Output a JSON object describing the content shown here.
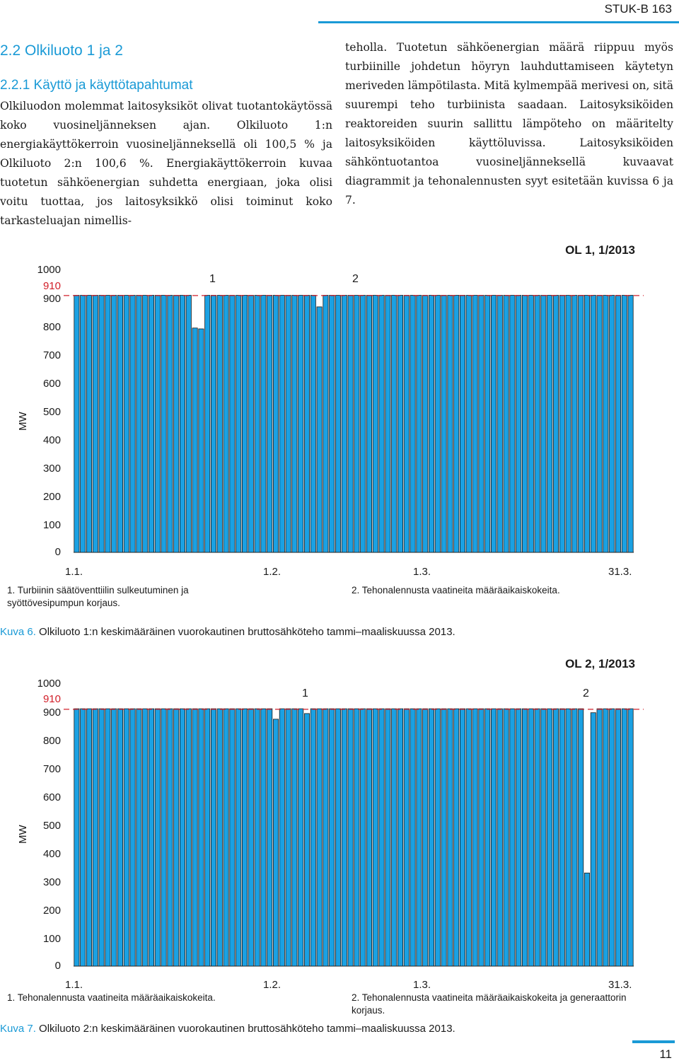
{
  "header": {
    "series": "STUK-B 163"
  },
  "section": {
    "title": "2.2  Olkiluoto 1 ja 2",
    "subtitle": "2.2.1 Käyttö ja käyttötapahtumat"
  },
  "body": {
    "left": "Olkiluodon molemmat laitosyksiköt olivat tuotantokäytössä koko vuosineljänneksen ajan. Olkiluoto 1:n energiakäyttökerroin vuosineljänneksellä oli 100,5 % ja Olkiluoto 2:n 100,6 %. Energiakäyttökerroin kuvaa tuotetun sähköenergian suhdetta energiaan, joka olisi voitu tuottaa, jos laitosyksikkö olisi toiminut koko tarkasteluajan nimellis-",
    "right": "teholla. Tuotetun sähköenergian määrä riippuu myös turbiinille johdetun höyryn lauhduttamiseen käytetyn meriveden lämpötilasta. Mitä kylmempää merivesi on, sitä suurempi teho turbiinista saadaan. Laitosyksiköiden reaktoreiden suurin sallittu lämpöteho on määritelty laitosyksiköiden käyttöluvissa. Laitosyksiköiden sähköntuotantoa vuosineljänneksellä kuvaavat diagrammit ja tehonalennusten syyt esitetään kuvissa 6 ja 7."
  },
  "colors": {
    "bar": "#1aa1e3",
    "accent": "#1a9ad6",
    "reference_line": "#d2202a"
  },
  "chart_data": [
    {
      "type": "bar",
      "title": "OL 1, 1/2013",
      "ylabel": "MW",
      "ylim": [
        0,
        1000
      ],
      "yticks": [
        "1000",
        "900",
        "800",
        "700",
        "600",
        "500",
        "400",
        "300",
        "200",
        "100",
        "0"
      ],
      "reference": {
        "value": 910,
        "label": "910"
      },
      "xticks": [
        "1.1.",
        "1.2.",
        "1.3.",
        "31.3."
      ],
      "annotations": [
        "1",
        "2"
      ],
      "values": [
        911,
        911,
        911,
        911,
        911,
        911,
        911,
        911,
        911,
        911,
        911,
        911,
        911,
        911,
        911,
        911,
        911,
        911,
        911,
        911,
        911,
        911,
        911,
        911,
        911,
        911,
        911,
        911,
        911,
        911,
        911,
        911,
        911,
        911,
        911,
        911,
        911,
        911,
        911,
        911,
        911,
        911,
        911,
        911,
        911,
        911,
        911,
        911,
        911,
        911,
        911,
        911,
        911,
        911,
        911,
        911,
        911,
        911,
        911,
        911,
        911,
        911,
        911,
        911,
        911,
        911,
        911,
        911,
        911,
        911,
        911,
        911,
        911,
        911,
        911,
        911,
        911,
        911,
        911,
        911,
        911,
        911,
        911,
        911,
        911,
        911,
        911,
        911,
        911,
        911
      ],
      "dips": [
        {
          "day": 19,
          "value": 795
        },
        {
          "day": 20,
          "value": 792
        },
        {
          "day": 39,
          "value": 870
        }
      ],
      "notes": [
        "1. Turbiinin säätöventtiilin sulkeutuminen ja syöttövesipumpun korjaus.",
        "2. Tehonalennusta vaatineita määräaikaiskokeita."
      ],
      "caption_label": "Kuva 6.",
      "caption": "Olkiluoto 1:n keskimääräinen vuorokautinen bruttosähköteho tammi–maaliskuussa 2013."
    },
    {
      "type": "bar",
      "title": "OL 2, 1/2013",
      "ylabel": "MW",
      "ylim": [
        0,
        1000
      ],
      "yticks": [
        "1000",
        "900",
        "800",
        "700",
        "600",
        "500",
        "400",
        "300",
        "200",
        "100",
        "0"
      ],
      "reference": {
        "value": 910,
        "label": "910"
      },
      "xticks": [
        "1.1.",
        "1.2.",
        "1.3.",
        "31.3."
      ],
      "annotations": [
        "1",
        "2"
      ],
      "values": [
        912,
        912,
        912,
        912,
        912,
        912,
        912,
        912,
        912,
        912,
        912,
        912,
        912,
        912,
        912,
        912,
        912,
        912,
        912,
        912,
        912,
        912,
        912,
        912,
        912,
        912,
        912,
        912,
        912,
        912,
        912,
        912,
        912,
        912,
        912,
        912,
        912,
        912,
        912,
        912,
        912,
        912,
        912,
        912,
        912,
        912,
        912,
        912,
        912,
        912,
        912,
        912,
        912,
        912,
        912,
        912,
        912,
        912,
        912,
        912,
        912,
        912,
        912,
        912,
        912,
        912,
        912,
        912,
        912,
        912,
        912,
        912,
        912,
        912,
        912,
        912,
        912,
        912,
        912,
        912,
        912,
        912,
        912,
        912,
        912,
        912,
        912,
        912,
        912,
        912
      ],
      "dips": [
        {
          "day": 32,
          "value": 875
        },
        {
          "day": 37,
          "value": 895
        },
        {
          "day": 82,
          "value": 330
        },
        {
          "day": 83,
          "value": 898
        }
      ],
      "notes": [
        "1. Tehonalennusta vaatineita määräaikaiskokeita.",
        "2. Tehonalennusta vaatineita määräaikaiskokeita ja generaattorin korjaus."
      ],
      "caption_label": "Kuva 7.",
      "caption": "Olkiluoto 2:n keskimääräinen vuorokautinen bruttosähköteho tammi–maaliskuussa 2013."
    }
  ],
  "footer": {
    "page": "11"
  }
}
